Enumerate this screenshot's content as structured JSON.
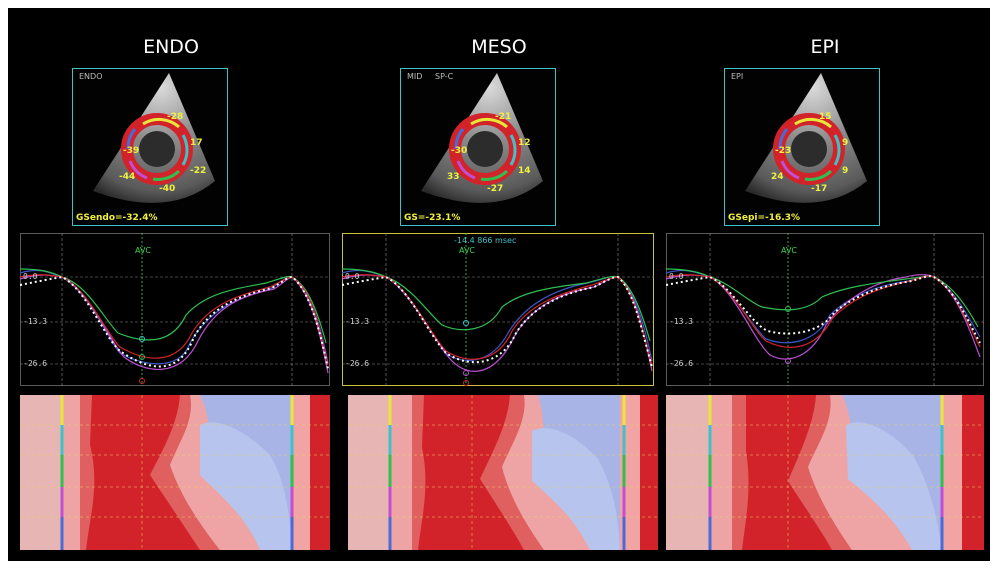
{
  "colors": {
    "background": "#000000",
    "frame": "#3ec2c9",
    "gs_text": "#f1f040",
    "avc": "#3dd34f",
    "heat_red": "#d2232a",
    "heat_blue": "#a8b4e6"
  },
  "panels": [
    {
      "title": "ENDO",
      "echo_labels": [
        "ENDO"
      ],
      "gs_label": "GSendo=-32.4%",
      "segments": [
        "-28",
        "17",
        "-22",
        "-40",
        "-44",
        "-39"
      ],
      "axis_labels": [
        "0.0",
        "-13.3",
        "-26.6"
      ],
      "avc_label": "AVC",
      "cursor_label": ""
    },
    {
      "title": "MESO",
      "echo_labels": [
        "MID",
        "SP-C"
      ],
      "gs_label": "GS=-23.1%",
      "segments": [
        "-21",
        "12",
        "14",
        "-27",
        "33",
        "-30"
      ],
      "axis_labels": [
        "0.0",
        "-13.3",
        "-26.6"
      ],
      "avc_label": "AVC",
      "cursor_label": "-14.4  866 msec"
    },
    {
      "title": "EPI",
      "echo_labels": [
        "EPI"
      ],
      "gs_label": "GSepi=-16.3%",
      "segments": [
        "15",
        "9",
        "9",
        "-17",
        "24",
        "-23"
      ],
      "axis_labels": [
        "0.0",
        "-13.3",
        "-26.6"
      ],
      "avc_label": "AVC",
      "cursor_label": ""
    }
  ]
}
